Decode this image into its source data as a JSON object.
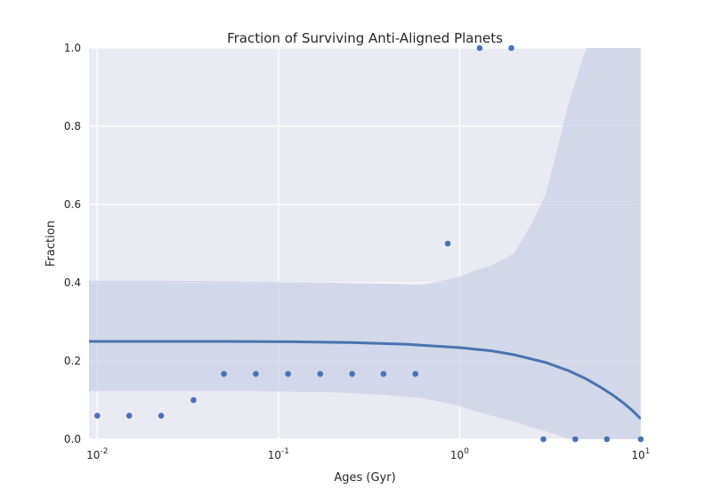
{
  "chart_data": {
    "type": "scatter",
    "title": "Fraction of Surviving Anti-Aligned Planets",
    "xlabel": "Ages (Gyr)",
    "ylabel": "Fraction",
    "xscale": "log",
    "xlim": [
      0.009,
      10
    ],
    "ylim": [
      0,
      1
    ],
    "grid": true,
    "colors": {
      "background": "#eaeaf2",
      "grid": "#ffffff",
      "points": "#4c72b0",
      "fit_line": "#4c72b0",
      "band": "#c5cde4"
    },
    "x_ticks": [
      {
        "value": 0.01,
        "base": "10",
        "exp": "-2"
      },
      {
        "value": 0.1,
        "base": "10",
        "exp": "-1"
      },
      {
        "value": 1,
        "base": "10",
        "exp": "0"
      },
      {
        "value": 10,
        "base": "10",
        "exp": "1"
      }
    ],
    "y_ticks": [
      {
        "value": 0,
        "label": "0.0"
      },
      {
        "value": 0.2,
        "label": "0.2"
      },
      {
        "value": 0.4,
        "label": "0.4"
      },
      {
        "value": 0.6,
        "label": "0.6"
      },
      {
        "value": 0.8,
        "label": "0.8"
      },
      {
        "value": 1.0,
        "label": "1.0"
      }
    ],
    "points": {
      "x": [
        0.01,
        0.015,
        0.0225,
        0.034,
        0.05,
        0.075,
        0.113,
        0.17,
        0.255,
        0.38,
        0.57,
        0.86,
        1.29,
        1.93,
        2.9,
        4.35,
        6.5,
        10
      ],
      "y": [
        0.06,
        0.06,
        0.06,
        0.1,
        0.167,
        0.167,
        0.167,
        0.167,
        0.167,
        0.167,
        0.167,
        0.5,
        1.0,
        1.0,
        0.0,
        0.0,
        0.0,
        0.0
      ]
    },
    "fit_line": {
      "x": [
        0.009,
        0.05,
        0.12,
        0.25,
        0.5,
        1.0,
        1.5,
        2.0,
        3.0,
        4.0,
        5.0,
        6.0,
        7.0,
        8.0,
        9.0,
        10.0
      ],
      "y": [
        0.25,
        0.25,
        0.249,
        0.247,
        0.243,
        0.234,
        0.226,
        0.216,
        0.196,
        0.175,
        0.154,
        0.133,
        0.113,
        0.093,
        0.073,
        0.052
      ]
    },
    "confidence_band": {
      "x": [
        0.009,
        0.02,
        0.05,
        0.1,
        0.2,
        0.4,
        0.6,
        0.8,
        1.0,
        1.2,
        1.5,
        2.0,
        2.5,
        3.0,
        3.5,
        4.0,
        5.0,
        6.0,
        8.0,
        10.0
      ],
      "upper": [
        0.405,
        0.405,
        0.404,
        0.402,
        0.4,
        0.397,
        0.394,
        0.405,
        0.415,
        0.43,
        0.445,
        0.475,
        0.55,
        0.63,
        0.75,
        0.86,
        1.0,
        1.0,
        1.0,
        1.0
      ],
      "lower": [
        0.123,
        0.123,
        0.123,
        0.122,
        0.12,
        0.113,
        0.106,
        0.095,
        0.085,
        0.073,
        0.06,
        0.045,
        0.03,
        0.02,
        0.01,
        0.0,
        0.0,
        0.0,
        0.0,
        0.0
      ]
    }
  }
}
